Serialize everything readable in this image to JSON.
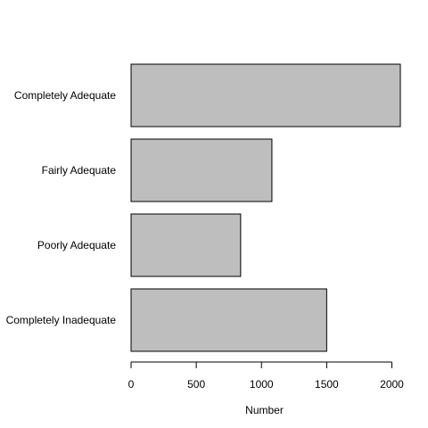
{
  "chart_data": {
    "type": "bar",
    "orientation": "horizontal",
    "categories": [
      "Completely Adequate",
      "Fairly Adequate",
      "Poorly Adequate",
      "Completely Inadequate"
    ],
    "values": [
      2065,
      1080,
      840,
      1500
    ],
    "title": "",
    "xlabel": "Number",
    "ylabel": "",
    "xlim": [
      0,
      2065
    ],
    "xticks": [
      0,
      500,
      1000,
      1500,
      2000
    ],
    "xtick_labels": [
      "0",
      "500",
      "1000",
      "1500",
      "2000"
    ],
    "grid": false,
    "legend": "none",
    "bar_color": "#bebebe",
    "bar_edge_color": "#000000"
  }
}
